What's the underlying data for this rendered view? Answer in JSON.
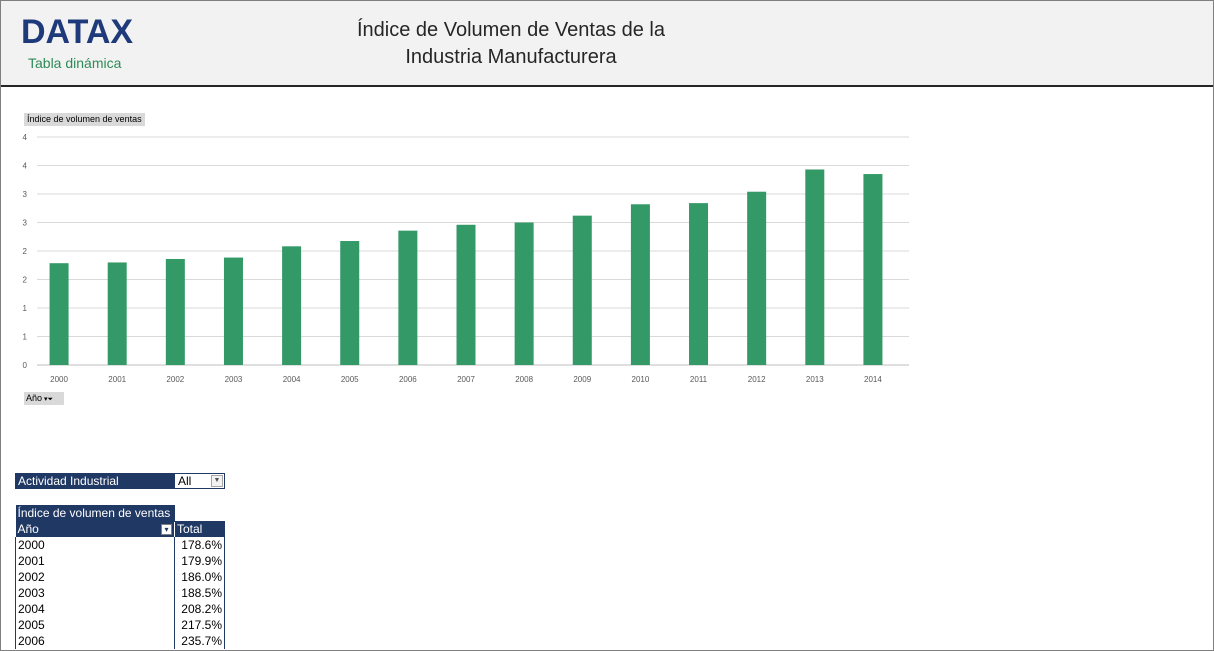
{
  "header": {
    "logo": "DATAX",
    "logo_sub": "Tabla dinámica",
    "title_line1": "Índice de Volumen de Ventas de la",
    "title_line2": "Industria Manufacturera"
  },
  "chart_field_button": "Índice de volumen de ventas",
  "axis_field_button": "Año",
  "chart_data": {
    "type": "bar",
    "categories": [
      "2000",
      "2001",
      "2002",
      "2003",
      "2004",
      "2005",
      "2006",
      "2007",
      "2008",
      "2009",
      "2010",
      "2011",
      "2012",
      "2013",
      "2014"
    ],
    "values": [
      1.786,
      1.799,
      1.86,
      1.885,
      2.082,
      2.175,
      2.357,
      2.46,
      2.5,
      2.62,
      2.82,
      2.84,
      3.04,
      3.43,
      3.35
    ],
    "ylim": [
      0,
      4
    ],
    "y_tick_labels": [
      "0",
      "1",
      "1",
      "2",
      "2",
      "3",
      "3",
      "4",
      "4"
    ],
    "grid": true,
    "color": "#339966"
  },
  "filter": {
    "label": "Actividad Industrial",
    "value": "All"
  },
  "pivot": {
    "header_measure": "Índice de volumen de ventas",
    "header_row": "Año",
    "header_total": "Total",
    "rows": [
      {
        "year": "2000",
        "value": "178.6%"
      },
      {
        "year": "2001",
        "value": "179.9%"
      },
      {
        "year": "2002",
        "value": "186.0%"
      },
      {
        "year": "2003",
        "value": "188.5%"
      },
      {
        "year": "2004",
        "value": "208.2%"
      },
      {
        "year": "2005",
        "value": "217.5%"
      },
      {
        "year": "2006",
        "value": "235.7%"
      }
    ]
  }
}
